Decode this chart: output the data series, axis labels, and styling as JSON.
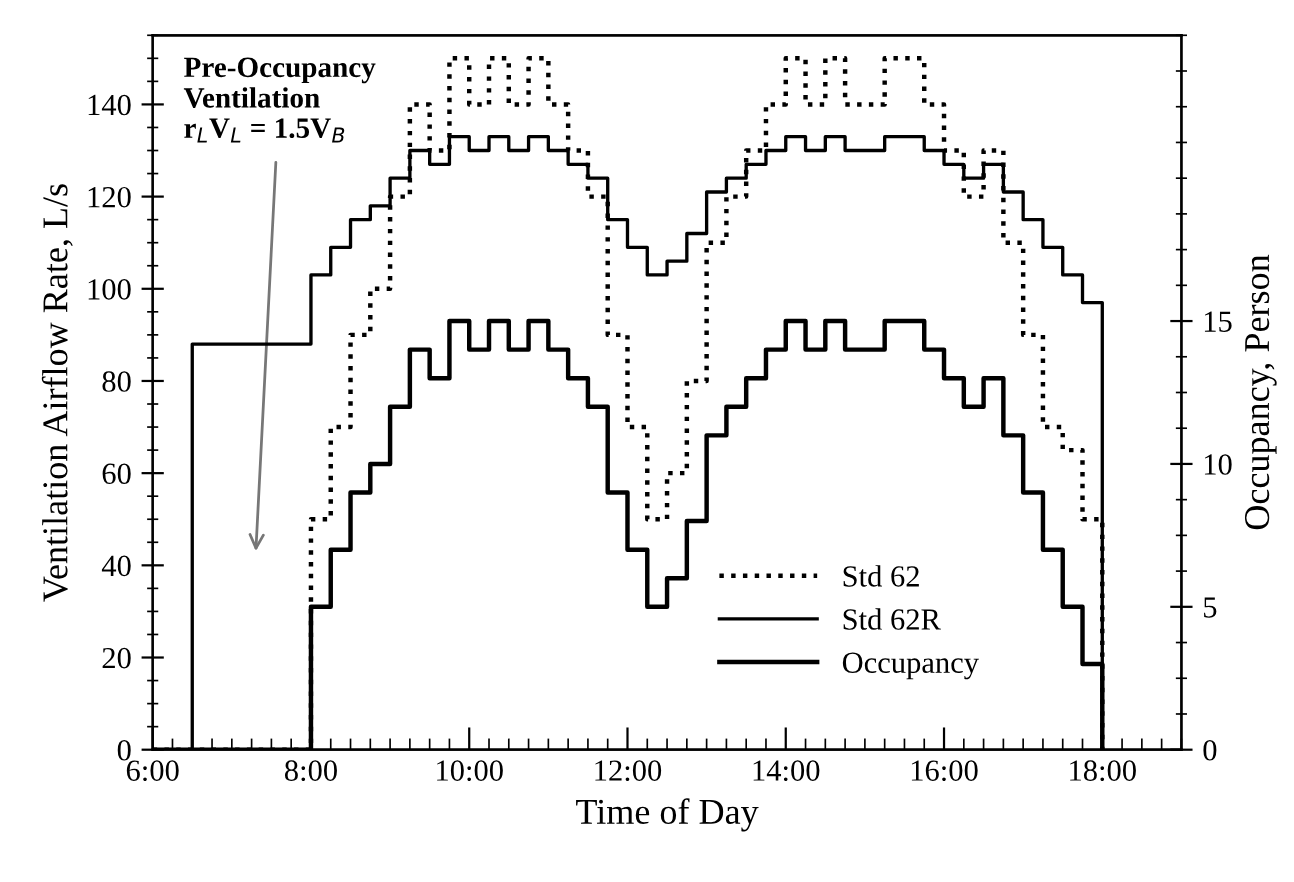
{
  "chart_data": {
    "type": "step",
    "xlabel": "Time of Day",
    "ylabel": "Ventilation Airflow Rate, L/s",
    "y2label": "Occupancy, Person",
    "xlim": [
      6,
      19
    ],
    "xticks": [
      {
        "value": 6,
        "label": "6:00"
      },
      {
        "value": 8,
        "label": "8:00"
      },
      {
        "value": 10,
        "label": "10:00"
      },
      {
        "value": 12,
        "label": "12:00"
      },
      {
        "value": 14,
        "label": "14:00"
      },
      {
        "value": 16,
        "label": "16:00"
      },
      {
        "value": 18,
        "label": "18:00"
      }
    ],
    "ylim": [
      0,
      155
    ],
    "yticks": [
      0,
      20,
      40,
      60,
      80,
      100,
      120,
      140
    ],
    "y2lim": [
      0,
      25
    ],
    "y2ticks": [
      0,
      5,
      10,
      15
    ],
    "grid": false,
    "legend": "bottom right",
    "annotations": [
      "Pre-Occupancy\nVentilation\nr$_{L}$V$_{L}$ = 1.5V$_{B}$"
    ],
    "series": [
      {
        "name": "Std 62",
        "color": "#000000",
        "line_style": "dotted",
        "x": [
          6,
          8,
          8.25,
          8.5,
          8.75,
          9,
          9.25,
          9.5,
          9.75,
          10,
          10.25,
          10.5,
          10.75,
          11,
          11.25,
          11.5,
          11.75,
          12,
          12.25,
          12.5,
          12.75,
          13,
          13.25,
          13.5,
          13.75,
          14,
          14.25,
          14.5,
          14.75,
          15,
          15.25,
          15.5,
          15.75,
          16,
          16.25,
          16.5,
          16.75,
          17,
          17.25,
          17.5,
          17.75,
          18
        ],
        "values": [
          0,
          50,
          70,
          90,
          100,
          120,
          140,
          130,
          150,
          140,
          150,
          140,
          150,
          140,
          130,
          120,
          90,
          70,
          50,
          60,
          80,
          110,
          120,
          130,
          140,
          150,
          140,
          150,
          140,
          140,
          150,
          150,
          140,
          130,
          120,
          130,
          110,
          90,
          70,
          65,
          50,
          0
        ]
      },
      {
        "name": "Std 62R",
        "color": "#000000",
        "line_style": "solid",
        "x": [
          6,
          6.5,
          8,
          8.25,
          8.5,
          8.75,
          9,
          9.25,
          9.5,
          9.75,
          10,
          10.25,
          10.5,
          10.75,
          11,
          11.25,
          11.5,
          11.75,
          12,
          12.25,
          12.5,
          12.75,
          13,
          13.25,
          13.5,
          13.75,
          14,
          14.25,
          14.5,
          14.75,
          15,
          15.25,
          15.5,
          15.75,
          16,
          16.25,
          16.5,
          16.75,
          17,
          17.25,
          17.5,
          17.75,
          18
        ],
        "values": [
          0,
          88,
          103,
          109,
          115,
          118,
          124,
          130,
          127,
          133,
          130,
          133,
          130,
          133,
          130,
          127,
          124,
          115,
          109,
          103,
          106,
          112,
          121,
          124,
          127,
          130,
          133,
          130,
          133,
          130,
          130,
          133,
          133,
          130,
          127,
          124,
          127,
          121,
          115,
          109,
          103,
          97,
          0
        ]
      },
      {
        "name": "Occupancy",
        "color": "#000000",
        "line_style": "solid",
        "axis": "y2",
        "x": [
          6,
          8,
          8.25,
          8.5,
          8.75,
          9,
          9.25,
          9.5,
          9.75,
          10,
          10.25,
          10.5,
          10.75,
          11,
          11.25,
          11.5,
          11.75,
          12,
          12.25,
          12.5,
          12.75,
          13,
          13.25,
          13.5,
          13.75,
          14,
          14.25,
          14.5,
          14.75,
          15,
          15.25,
          15.5,
          15.75,
          16,
          16.25,
          16.5,
          16.75,
          17,
          17.25,
          17.5,
          17.75,
          18
        ],
        "values": [
          0,
          5,
          7,
          9,
          10,
          12,
          14,
          13,
          15,
          14,
          15,
          14,
          15,
          14,
          13,
          12,
          9,
          7,
          5,
          6,
          8,
          11,
          12,
          13,
          14,
          15,
          14,
          15,
          14,
          14,
          15,
          15,
          14,
          13,
          12,
          13,
          11,
          9,
          7,
          5,
          3,
          0
        ]
      }
    ]
  }
}
